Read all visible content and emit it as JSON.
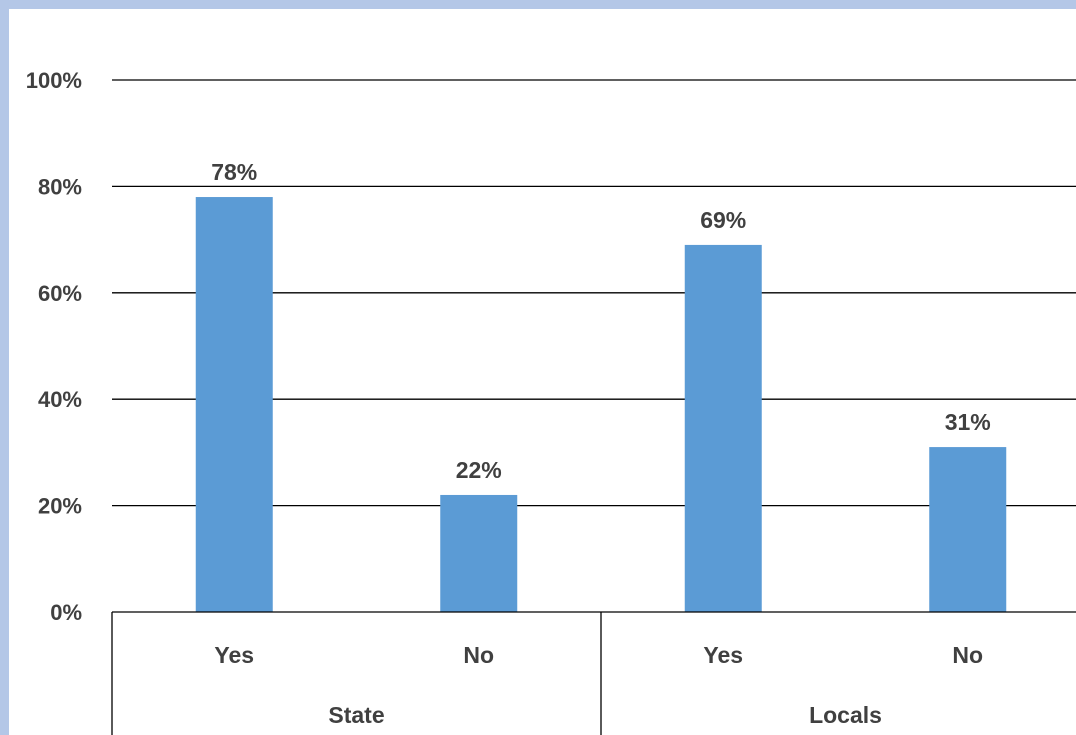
{
  "chart_data": {
    "type": "bar",
    "groups": [
      {
        "name": "State",
        "categories": [
          "Yes",
          "No"
        ],
        "values": [
          78,
          22
        ],
        "labels": [
          "78%",
          "22%"
        ]
      },
      {
        "name": "Locals",
        "categories": [
          "Yes",
          "No"
        ],
        "values": [
          69,
          31
        ],
        "labels": [
          "69%",
          "31%"
        ]
      }
    ],
    "ylim": [
      0,
      100
    ],
    "yticks": [
      0,
      20,
      40,
      60,
      80,
      100
    ],
    "ytick_labels": [
      "0%",
      "20%",
      "40%",
      "60%",
      "80%",
      "100%"
    ],
    "grid": true,
    "legend": "none",
    "bar_color": "#5b9bd5"
  }
}
